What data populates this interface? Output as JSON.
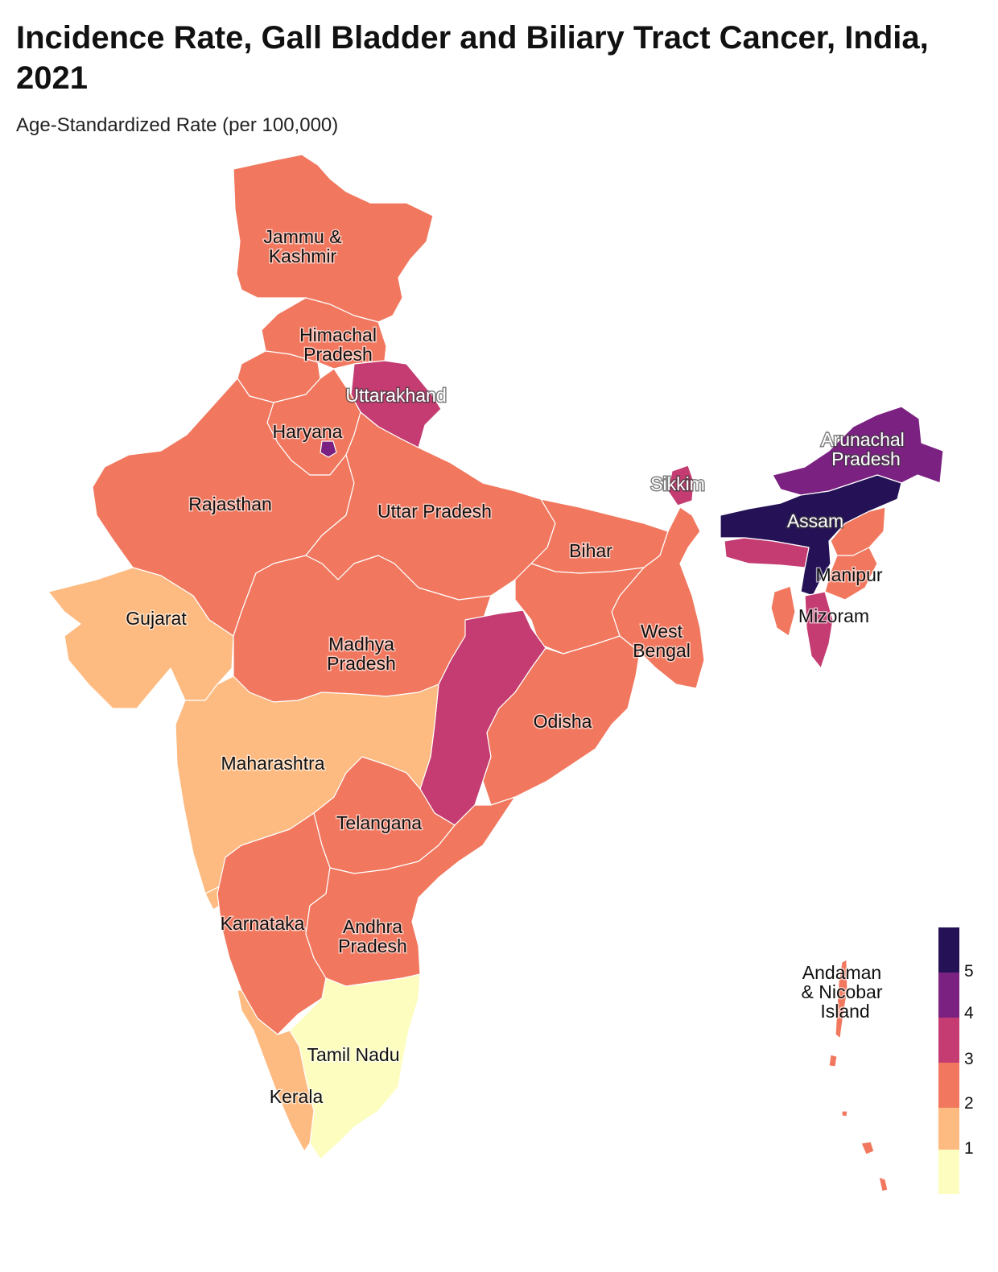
{
  "title": "Incidence Rate, Gall Bladder and Biliary Tract Cancer, India, 2021",
  "subtitle": "Age-Standardized Rate (per 100,000)",
  "colors": {
    "r0": "#fcfdbf",
    "r1": "#febb81",
    "r2": "#f1785f",
    "r3": "#c43c71",
    "r4": "#7a2181",
    "r5": "#251256"
  },
  "states": [
    {
      "key": "jk",
      "name": [
        "Jammu &",
        "Kashmir"
      ],
      "bin": 2
    },
    {
      "key": "hp",
      "name": [
        "Himachal",
        "Pradesh"
      ],
      "bin": 2
    },
    {
      "key": "uk",
      "name": [
        "Uttarakhand"
      ],
      "bin": 3
    },
    {
      "key": "hr",
      "name": [
        "Haryana"
      ],
      "bin": 2
    },
    {
      "key": "dl",
      "name": [],
      "bin": 4
    },
    {
      "key": "rj",
      "name": [
        "Rajasthan"
      ],
      "bin": 2
    },
    {
      "key": "up",
      "name": [
        "Uttar Pradesh"
      ],
      "bin": 2
    },
    {
      "key": "br",
      "name": [
        "Bihar"
      ],
      "bin": 2
    },
    {
      "key": "sk",
      "name": [
        "Sikkim"
      ],
      "bin": 3
    },
    {
      "key": "ar",
      "name": [
        "Arunachal",
        "Pradesh"
      ],
      "bin": 4
    },
    {
      "key": "as",
      "name": [
        "Assam"
      ],
      "bin": 5
    },
    {
      "key": "ml",
      "name": [],
      "bin": 3
    },
    {
      "key": "mn",
      "name": [
        "Manipur"
      ],
      "bin": 2
    },
    {
      "key": "mz",
      "name": [
        "Mizoram"
      ],
      "bin": 3
    },
    {
      "key": "gj",
      "name": [
        "Gujarat"
      ],
      "bin": 1
    },
    {
      "key": "mp",
      "name": [
        "Madhya",
        "Pradesh"
      ],
      "bin": 2
    },
    {
      "key": "wb",
      "name": [
        "West",
        "Bengal"
      ],
      "bin": 2
    },
    {
      "key": "cg",
      "name": [],
      "bin": 3
    },
    {
      "key": "od",
      "name": [
        "Odisha"
      ],
      "bin": 2
    },
    {
      "key": "mh",
      "name": [
        "Maharashtra"
      ],
      "bin": 1
    },
    {
      "key": "tg",
      "name": [
        "Telangana"
      ],
      "bin": 2
    },
    {
      "key": "ka",
      "name": [
        "Karnataka"
      ],
      "bin": 2
    },
    {
      "key": "ap",
      "name": [
        "Andhra",
        "Pradesh"
      ],
      "bin": 2
    },
    {
      "key": "tn",
      "name": [
        "Tamil Nadu"
      ],
      "bin": 0
    },
    {
      "key": "kl",
      "name": [
        "Kerala"
      ],
      "bin": 1
    },
    {
      "key": "an",
      "name": [
        "Andaman",
        "& Nicobar",
        "Island"
      ],
      "bin": 2
    }
  ],
  "legend": {
    "ticks": [
      "1",
      "2",
      "3",
      "4",
      "5"
    ]
  }
}
